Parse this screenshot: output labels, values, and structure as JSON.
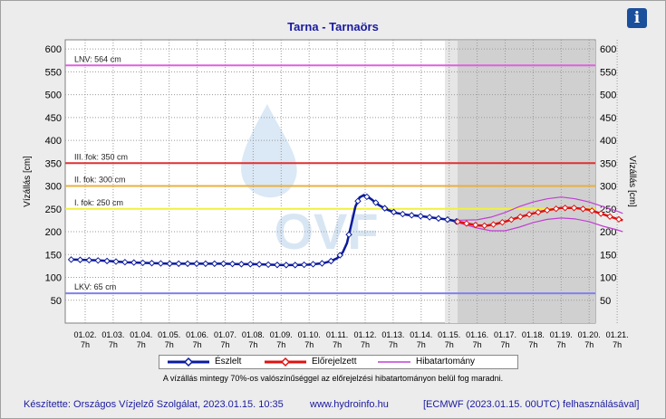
{
  "header": {
    "info_icon": "info-icon",
    "info_glyph": "i"
  },
  "chart_data": {
    "type": "line",
    "title": "Tarna - Tarnaörs",
    "ylabel": "Vízállás [cm]",
    "ylim": [
      0,
      620
    ],
    "yticks": [
      50,
      100,
      150,
      200,
      250,
      300,
      350,
      400,
      450,
      500,
      550,
      600
    ],
    "grid": true,
    "x_ticks": [
      {
        "date": "01.02.",
        "hour": "7h"
      },
      {
        "date": "01.03.",
        "hour": "7h"
      },
      {
        "date": "01.04.",
        "hour": "7h"
      },
      {
        "date": "01.05.",
        "hour": "7h"
      },
      {
        "date": "01.06.",
        "hour": "7h"
      },
      {
        "date": "01.07.",
        "hour": "7h"
      },
      {
        "date": "01.08.",
        "hour": "7h"
      },
      {
        "date": "01.09.",
        "hour": "7h"
      },
      {
        "date": "01.10.",
        "hour": "7h"
      },
      {
        "date": "01.11.",
        "hour": "7h"
      },
      {
        "date": "01.12.",
        "hour": "7h"
      },
      {
        "date": "01.13.",
        "hour": "7h"
      },
      {
        "date": "01.14.",
        "hour": "7h"
      },
      {
        "date": "01.15.",
        "hour": "7h"
      },
      {
        "date": "01.16.",
        "hour": "7h"
      },
      {
        "date": "01.17.",
        "hour": "7h"
      },
      {
        "date": "01.18.",
        "hour": "7h"
      },
      {
        "date": "01.19.",
        "hour": "7h"
      },
      {
        "date": "01.20.",
        "hour": "7h"
      },
      {
        "date": "01.21.",
        "hour": "7h"
      }
    ],
    "forecast_shading_start_day": 13.3,
    "threshold_lines": [
      {
        "label": "LNV: 564 cm",
        "value": 564,
        "color": "#e060e0"
      },
      {
        "label": "III. fok: 350 cm",
        "value": 350,
        "color": "#e03030"
      },
      {
        "label": "II. fok: 300 cm",
        "value": 300,
        "color": "#e8b040"
      },
      {
        "label": "I. fok: 250 cm",
        "value": 250,
        "color": "#f0f040"
      },
      {
        "label": "LKV: 65 cm",
        "value": 65,
        "color": "#8080f0"
      }
    ],
    "series": [
      {
        "name": "Észlelt",
        "color": "#0a1a9c",
        "points": [
          [
            -0.5,
            139
          ],
          [
            0,
            138
          ],
          [
            0.5,
            137
          ],
          [
            1,
            135
          ],
          [
            1.5,
            133
          ],
          [
            2,
            132
          ],
          [
            2.5,
            131
          ],
          [
            3,
            130
          ],
          [
            3.5,
            130
          ],
          [
            4,
            130
          ],
          [
            4.5,
            130
          ],
          [
            5,
            130
          ],
          [
            5.5,
            129
          ],
          [
            6,
            129
          ],
          [
            6.5,
            128
          ],
          [
            7,
            127
          ],
          [
            7.5,
            127
          ],
          [
            8,
            128
          ],
          [
            8.5,
            131
          ],
          [
            8.8,
            136
          ],
          [
            9,
            142
          ],
          [
            9.2,
            155
          ],
          [
            9.35,
            175
          ],
          [
            9.5,
            215
          ],
          [
            9.65,
            255
          ],
          [
            9.8,
            275
          ],
          [
            9.95,
            280
          ],
          [
            10.2,
            272
          ],
          [
            10.5,
            258
          ],
          [
            10.8,
            248
          ],
          [
            11.1,
            241
          ],
          [
            11.5,
            237
          ],
          [
            12,
            234
          ],
          [
            12.5,
            230
          ],
          [
            13,
            226
          ],
          [
            13.3,
            222
          ]
        ]
      },
      {
        "name": "Előrejelzett",
        "color": "#e01010",
        "points": [
          [
            13.3,
            222
          ],
          [
            13.7,
            217
          ],
          [
            14,
            214
          ],
          [
            14.3,
            213
          ],
          [
            14.6,
            216
          ],
          [
            15,
            222
          ],
          [
            15.5,
            232
          ],
          [
            16,
            240
          ],
          [
            16.5,
            247
          ],
          [
            17,
            252
          ],
          [
            17.5,
            252
          ],
          [
            18,
            248
          ],
          [
            18.5,
            238
          ],
          [
            19,
            228
          ],
          [
            19.2,
            225
          ]
        ]
      }
    ],
    "error_band": {
      "name": "Hibatartomány",
      "color": "#c040d0",
      "upper": [
        [
          13.3,
          225
        ],
        [
          14,
          226
        ],
        [
          14.5,
          232
        ],
        [
          15,
          242
        ],
        [
          15.5,
          255
        ],
        [
          16,
          265
        ],
        [
          16.5,
          272
        ],
        [
          17,
          276
        ],
        [
          17.5,
          272
        ],
        [
          18,
          265
        ],
        [
          18.5,
          255
        ],
        [
          19,
          245
        ],
        [
          19.2,
          240
        ]
      ],
      "lower": [
        [
          13.3,
          220
        ],
        [
          14,
          208
        ],
        [
          14.5,
          202
        ],
        [
          15,
          202
        ],
        [
          15.5,
          210
        ],
        [
          16,
          220
        ],
        [
          16.5,
          227
        ],
        [
          17,
          230
        ],
        [
          17.5,
          228
        ],
        [
          18,
          222
        ],
        [
          18.5,
          212
        ],
        [
          19,
          204
        ],
        [
          19.2,
          200
        ]
      ]
    }
  },
  "legend": {
    "observed": "Észlelt",
    "forecast": "Előrejelzett",
    "error": "Hibatartomány"
  },
  "note": "A vízállás mintegy 70%-os valószínűséggel az előrejelzési hibatartományon belül fog maradni.",
  "footer": {
    "author": "Készítette: Országos Vízjelző Szolgálat, 2023.01.15. 10:35",
    "website": "www.hydroinfo.hu",
    "model": "[ECMWF (2023.01.15. 00UTC) felhasználásával]"
  }
}
